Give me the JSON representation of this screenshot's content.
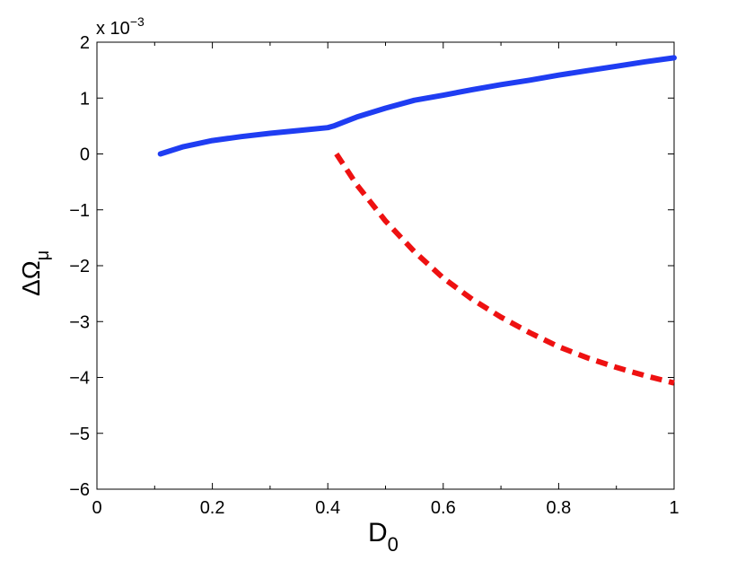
{
  "chart_data": {
    "type": "line",
    "title": "",
    "xlabel": "D",
    "xlabel_subscript": "0",
    "ylabel": "ΔΩ",
    "ylabel_subscript": "μ",
    "y_multiplier": "x 10",
    "y_multiplier_exponent": "−3",
    "xlim": [
      0,
      1
    ],
    "ylim": [
      -6,
      2
    ],
    "x_ticks": [
      0,
      0.2,
      0.4,
      0.6,
      0.8,
      1
    ],
    "x_tick_labels": [
      "0",
      "0.2",
      "0.4",
      "0.6",
      "0.8",
      "1"
    ],
    "y_ticks": [
      2,
      1,
      0,
      -1,
      -2,
      -3,
      -4,
      -5,
      -6
    ],
    "y_tick_labels": [
      "2",
      "1",
      "0",
      "−1",
      "−2",
      "−3",
      "−4",
      "−5",
      "−6"
    ],
    "grid": false,
    "series": [
      {
        "style": "solid",
        "color": "#1f3df2",
        "x": [
          0.11,
          0.15,
          0.2,
          0.25,
          0.3,
          0.35,
          0.4,
          0.41,
          0.45,
          0.5,
          0.55,
          0.6,
          0.65,
          0.7,
          0.75,
          0.8,
          0.85,
          0.9,
          0.95,
          1.0
        ],
        "y": [
          0.0,
          0.13,
          0.24,
          0.31,
          0.37,
          0.42,
          0.47,
          0.5,
          0.66,
          0.82,
          0.96,
          1.05,
          1.15,
          1.24,
          1.32,
          1.41,
          1.49,
          1.57,
          1.65,
          1.72
        ]
      },
      {
        "style": "dashed",
        "color": "#ee1111",
        "x": [
          0.415,
          0.45,
          0.5,
          0.55,
          0.6,
          0.65,
          0.7,
          0.75,
          0.8,
          0.85,
          0.9,
          0.95,
          1.0
        ],
        "y": [
          0.0,
          -0.55,
          -1.2,
          -1.75,
          -2.22,
          -2.6,
          -2.92,
          -3.2,
          -3.45,
          -3.65,
          -3.82,
          -3.97,
          -4.1
        ]
      }
    ]
  }
}
